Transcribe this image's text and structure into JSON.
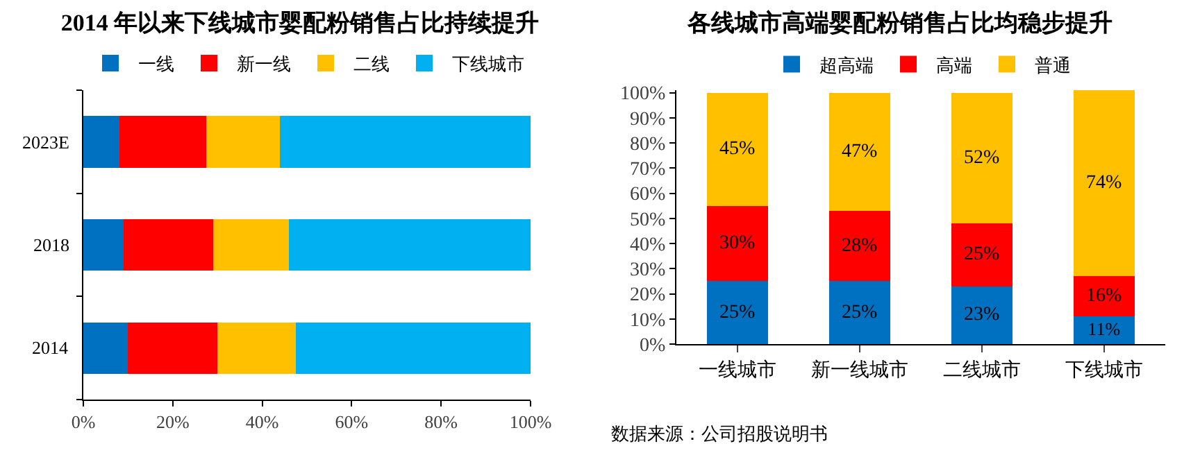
{
  "chart_data": [
    {
      "type": "bar",
      "title": "2014 年以来下线城市婴配粉销售占比持续提升",
      "orientation": "horizontal",
      "stacked": true,
      "categories": [
        "2023E",
        "2018",
        "2014"
      ],
      "series": [
        {
          "name": "一线",
          "color": "#0070c0",
          "values": [
            8,
            9,
            10
          ]
        },
        {
          "name": "新一线",
          "color": "#ff0000",
          "values": [
            19.5,
            20,
            20
          ]
        },
        {
          "name": "二线",
          "color": "#ffc000",
          "values": [
            16.5,
            17,
            17.5
          ]
        },
        {
          "name": "下线城市",
          "color": "#00b0f0",
          "values": [
            56,
            54,
            52.5
          ]
        }
      ],
      "xlim": [
        0,
        100
      ],
      "xticks": [
        {
          "value": 0,
          "label": "0%"
        },
        {
          "value": 20,
          "label": "20%"
        },
        {
          "value": 40,
          "label": "40%"
        },
        {
          "value": 60,
          "label": "60%"
        },
        {
          "value": 80,
          "label": "80%"
        },
        {
          "value": 100,
          "label": "100%"
        }
      ],
      "grid": false,
      "legend": "top"
    },
    {
      "type": "bar",
      "title": "各线城市高端婴配粉销售占比均稳步提升",
      "stacked": true,
      "categories": [
        "一线城市",
        "新一线城市",
        "二线城市",
        "下线城市"
      ],
      "series": [
        {
          "name": "超高端",
          "color": "#0070c0",
          "values": [
            25,
            25,
            23,
            11
          ],
          "value_labels": [
            "25%",
            "25%",
            "23%",
            "11%"
          ]
        },
        {
          "name": "高端",
          "color": "#ff0000",
          "values": [
            30,
            28,
            25,
            16
          ],
          "value_labels": [
            "30%",
            "28%",
            "25%",
            "16%"
          ]
        },
        {
          "name": "普通",
          "color": "#ffc000",
          "values": [
            45,
            47,
            52,
            74
          ],
          "value_labels": [
            "45%",
            "47%",
            "52%",
            "74%"
          ]
        }
      ],
      "ylim": [
        0,
        101
      ],
      "yticks": [
        {
          "value": 0,
          "label": "0%"
        },
        {
          "value": 10,
          "label": "10%"
        },
        {
          "value": 20,
          "label": "20%"
        },
        {
          "value": 30,
          "label": "30%"
        },
        {
          "value": 40,
          "label": "40%"
        },
        {
          "value": 50,
          "label": "50%"
        },
        {
          "value": 60,
          "label": "60%"
        },
        {
          "value": 70,
          "label": "70%"
        },
        {
          "value": 80,
          "label": "80%"
        },
        {
          "value": 90,
          "label": "90%"
        },
        {
          "value": 100,
          "label": "100%"
        }
      ],
      "grid": false,
      "legend": "top",
      "annotations": [
        "数据来源：公司招股说明书"
      ]
    }
  ]
}
